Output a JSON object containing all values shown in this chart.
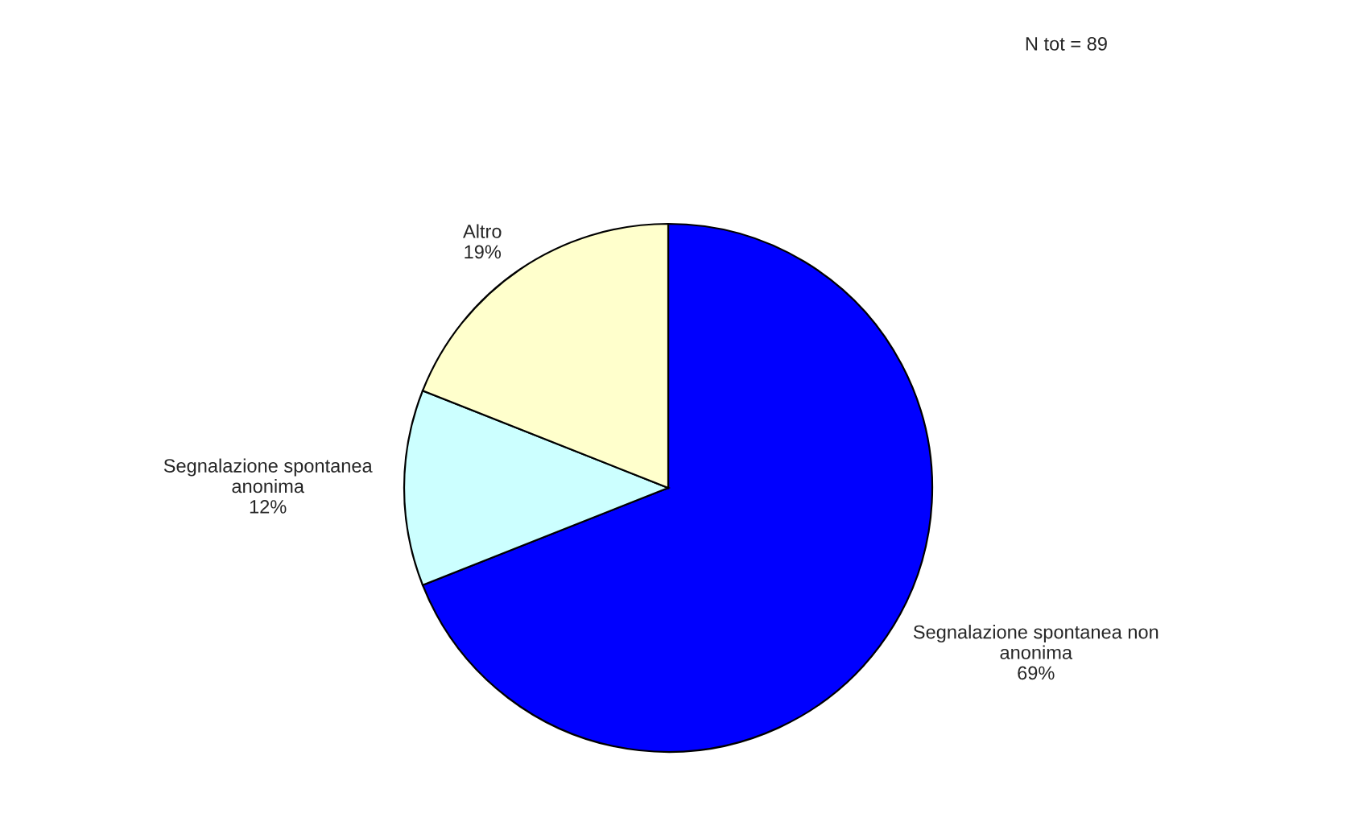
{
  "chart_data": {
    "type": "pie",
    "categories": [
      "Segnalazione spontanea non\nanonima",
      "Segnalazione spontanea\nanonima",
      "Altro"
    ],
    "values": [
      69,
      12,
      19
    ],
    "colors": [
      "#0000ff",
      "#ccffff",
      "#ffffcc"
    ],
    "value_labels": [
      "69%",
      "12%",
      "19%"
    ],
    "annotations": [
      "N tot = 89"
    ]
  }
}
